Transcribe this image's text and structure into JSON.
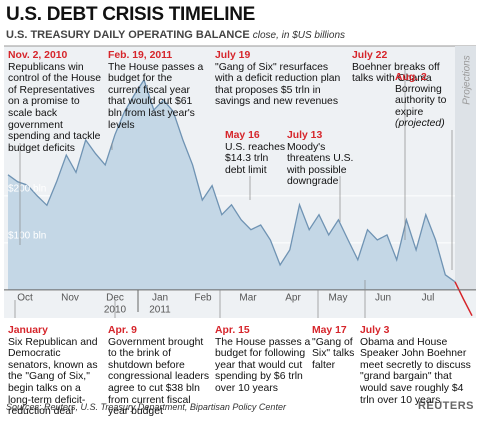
{
  "chart_data": {
    "type": "area",
    "title": "U.S. DEBT CRISIS TIMELINE",
    "subtitle": "U.S. TREASURY DAILY OPERATING BALANCE",
    "unit_note": "close, in $US billions",
    "series": [
      {
        "color": "#6f93b3",
        "values": [
          245,
          230,
          223,
          200,
          180,
          230,
          287,
          250,
          319,
          290,
          266,
          330,
          380,
          415,
          447,
          383,
          404,
          380,
          319,
          266,
          191,
          222,
          160,
          181,
          149,
          128,
          138,
          106,
          53,
          85,
          181,
          128,
          160,
          117,
          149,
          106,
          64,
          128,
          106,
          117,
          64,
          149,
          85,
          160,
          106,
          32,
          17
        ]
      },
      {
        "color": "#d6252b",
        "values": [
          17,
          -20,
          -55
        ]
      }
    ],
    "xtick_labels": [
      "Oct",
      "Nov",
      "Dec",
      "Jan",
      "Feb",
      "Mar",
      "Apr",
      "May",
      "Jun",
      "Jul"
    ],
    "year_labels": [
      "2010",
      "2011"
    ],
    "projection_label": "Projections",
    "ylim": [
      -60,
      500
    ],
    "yticks": [
      {
        "value": 100,
        "label": "$100 bln"
      },
      {
        "value": 200,
        "label": "$200 bln"
      }
    ],
    "grid": true,
    "annotations": [
      {
        "date": "Nov. 2, 2010",
        "text": "Republicans win control of the House of Representatives on a promise to scale back government spending and tackle budget deficits"
      },
      {
        "date": "Feb. 19, 2011",
        "text": "The House passes a budget for the current fiscal year that would cut $61 bln from last year's levels"
      },
      {
        "date": "July 19",
        "text": "\"Gang of Six\" resurfaces with a deficit reduction plan that proposes $5 trln in savings and new revenues"
      },
      {
        "date": "July 22",
        "text": "Boehner breaks off talks with Obama"
      },
      {
        "date": "Aug. 2",
        "text": "Borrowing authority to expire",
        "note": "(projected)"
      },
      {
        "date": "May 16",
        "text": "U.S. reaches $14.3 trln debt limit"
      },
      {
        "date": "July 13",
        "text": "Moody's threatens U.S. with possible downgrade"
      },
      {
        "date": "January",
        "text": "Six Republican and Democratic senators, known as the \"Gang of Six,\" begin talks on a long-term deficit-reduction deal"
      },
      {
        "date": "Apr. 9",
        "text": "Government brought to the brink of shutdown before congressional leaders agree to cut $38 bln from current fiscal year budget"
      },
      {
        "date": "Apr. 15",
        "text": "The House passes a budget for following year that would cut spending by $6 trln over 10 years"
      },
      {
        "date": "May 17",
        "text": "\"Gang of Six\" talks falter"
      },
      {
        "date": "July 3",
        "text": "Obama and House Speaker John Boehner meet secretly to discuss \"grand bargain\" that would save roughly $4 trln over 10 years"
      }
    ]
  },
  "source": "Sources: Reuters, U.S. Treasury Department, Bipartisan Policy Center",
  "brand": "REUTERS"
}
